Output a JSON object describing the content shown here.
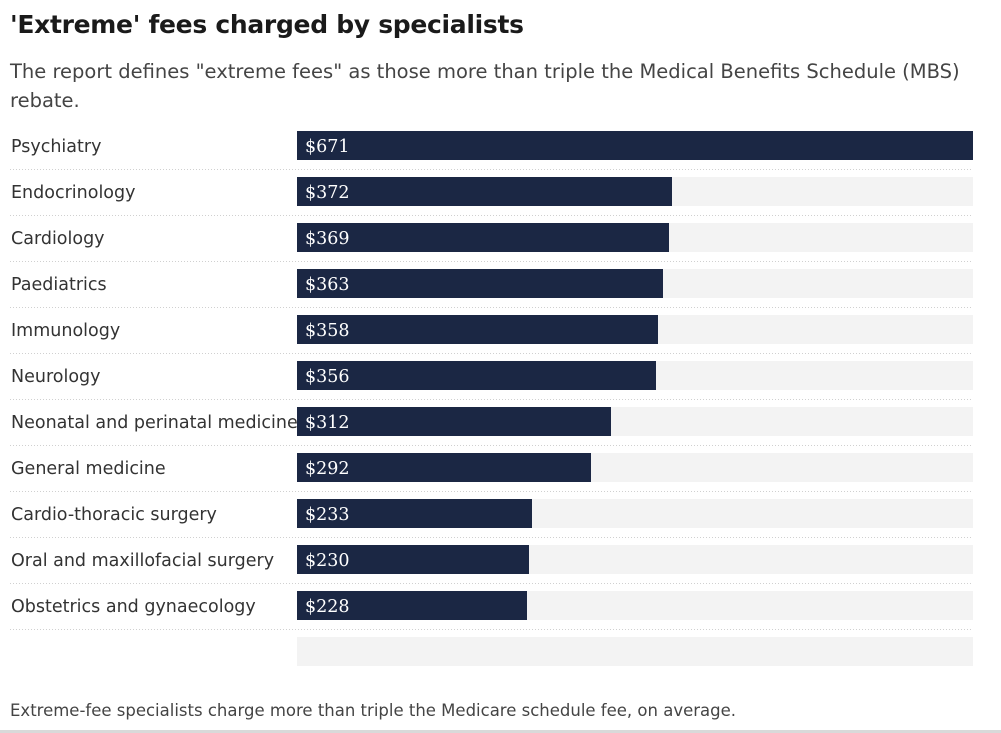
{
  "title": "'Extreme' fees charged by specialists",
  "subtitle": "The report defines \"extreme fees\" as those more than triple the Medical Benefits Schedule (MBS) rebate.",
  "footnote": "Extreme-fee specialists charge more than triple the Medicare schedule fee, on average.",
  "colors": {
    "bar": "#1b2744",
    "track": "#f3f3f3",
    "bar_label": "#ffffff",
    "category_label": "#333333",
    "separator": "#d0d0d0"
  },
  "chart_data": {
    "type": "bar",
    "orientation": "horizontal",
    "value_prefix": "$",
    "categories": [
      "Psychiatry",
      "Endocrinology",
      "Cardiology",
      "Paediatrics",
      "Immunology",
      "Neurology",
      "Neonatal and perinatal medicine",
      "General medicine",
      "Cardio-thoracic surgery",
      "Oral and maxillofacial surgery",
      "Obstetrics and gynaecology"
    ],
    "values": [
      671,
      372,
      369,
      363,
      358,
      356,
      312,
      292,
      233,
      230,
      228
    ],
    "labels": [
      "$671",
      "$372",
      "$369",
      "$363",
      "$358",
      "$356",
      "$312",
      "$292",
      "$233",
      "$230",
      "$228"
    ],
    "xlim": [
      0,
      671
    ],
    "grid": false,
    "legend": "none",
    "title": "'Extreme' fees charged by specialists",
    "xlabel": "",
    "ylabel": ""
  }
}
